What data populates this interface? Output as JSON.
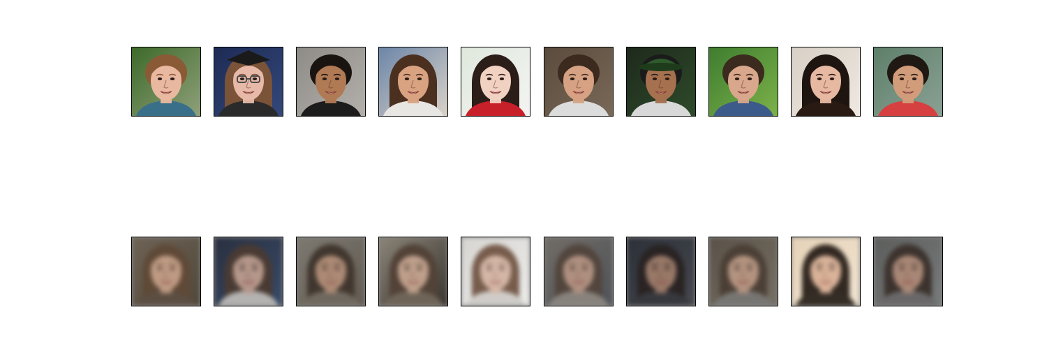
{
  "figure": {
    "rows": [
      {
        "kind": "original",
        "tiles": [
          {
            "bg": "#3d6a2a",
            "bg2": "#8fa07a",
            "hair": "#8a5a36",
            "skin": "#e9b8a0",
            "shirt": "#3a6f8a",
            "hair_style": "short"
          },
          {
            "bg": "#1d2b55",
            "bg2": "#34487a",
            "hair": "#7a5338",
            "skin": "#e6b9a8",
            "shirt": "#2a2a2a",
            "hair_style": "long",
            "accessory": "glasses-and-cap"
          },
          {
            "bg": "#8f8c88",
            "bg2": "#b3b0ac",
            "hair": "#1a1410",
            "skin": "#b07a55",
            "shirt": "#1c1c1c",
            "hair_style": "short"
          },
          {
            "bg": "#6c86a8",
            "bg2": "#d9d2c8",
            "hair": "#4b3020",
            "skin": "#d9a382",
            "shirt": "#e8e6e2",
            "hair_style": "curly"
          },
          {
            "bg": "#dfe8dd",
            "bg2": "#f4f4f2",
            "hair": "#2b1d18",
            "skin": "#f1d2c2",
            "shirt": "#c8202a",
            "hair_style": "bun"
          },
          {
            "bg": "#5a4b3e",
            "bg2": "#7a6957",
            "hair": "#3c2a1e",
            "skin": "#d6a283",
            "shirt": "#dcdcdc",
            "hair_style": "short"
          },
          {
            "bg": "#1e2a1c",
            "bg2": "#2e4a2a",
            "hair": "#1b1b1b",
            "skin": "#a5714f",
            "shirt": "#d8d8d8",
            "hair_style": "cap"
          },
          {
            "bg": "#3f7d2f",
            "bg2": "#7cb24a",
            "hair": "#3b2a1e",
            "skin": "#d8a78c",
            "shirt": "#3c5a8a",
            "hair_style": "short"
          },
          {
            "bg": "#d8d0c6",
            "bg2": "#efe9e2",
            "hair": "#1e1410",
            "skin": "#e7b9a2",
            "shirt": "#2a1a14",
            "hair_style": "long"
          },
          {
            "bg": "#5e7f6a",
            "bg2": "#8aa194",
            "hair": "#1f1813",
            "skin": "#d19c7a",
            "shirt": "#d64040",
            "hair_style": "short"
          }
        ]
      },
      {
        "kind": "reconstruction",
        "tiles": [
          {
            "bg": "#6e6355",
            "bg2": "#4d4438",
            "hair": "#5e4634",
            "skin": "#caa28a",
            "shirt": "#5a4c40",
            "hair_style": "long"
          },
          {
            "bg": "#2a3040",
            "bg2": "#3b4e6e",
            "hair": "#4e3c32",
            "skin": "#c9a594",
            "shirt": "#c8c4c0",
            "hair_style": "long"
          },
          {
            "bg": "#7d7870",
            "bg2": "#5e574d",
            "hair": "#3a2e26",
            "skin": "#b38d76",
            "shirt": "#6e665c",
            "hair_style": "long"
          },
          {
            "bg": "#8a8478",
            "bg2": "#2e2a24",
            "hair": "#4a3a2e",
            "skin": "#c5a38e",
            "shirt": "#6a6052",
            "hair_style": "long"
          },
          {
            "bg": "#d8d6d2",
            "bg2": "#eeeeec",
            "hair": "#6a4c3a",
            "skin": "#d4b2a0",
            "shirt": "#cfcbc6",
            "hair_style": "long"
          },
          {
            "bg": "#716c66",
            "bg2": "#4a5058",
            "hair": "#4e4038",
            "skin": "#b89684",
            "shirt": "#8a8680",
            "hair_style": "long"
          },
          {
            "bg": "#2c3038",
            "bg2": "#4a4c52",
            "hair": "#2a2220",
            "skin": "#a8826e",
            "shirt": "#3a3a3e",
            "hair_style": "long"
          },
          {
            "bg": "#5a5248",
            "bg2": "#7a7468",
            "hair": "#4a3e34",
            "skin": "#c09c88",
            "shirt": "#7c7a78",
            "hair_style": "long"
          },
          {
            "bg": "#e6d2b8",
            "bg2": "#f2e6d6",
            "hair": "#1a120e",
            "skin": "#d8ae96",
            "shirt": "#1c1612",
            "hair_style": "long"
          },
          {
            "bg": "#5c5e5c",
            "bg2": "#7c8080",
            "hair": "#3a2e28",
            "skin": "#b48e7a",
            "shirt": "#6c6a6a",
            "hair_style": "long"
          }
        ]
      }
    ]
  }
}
